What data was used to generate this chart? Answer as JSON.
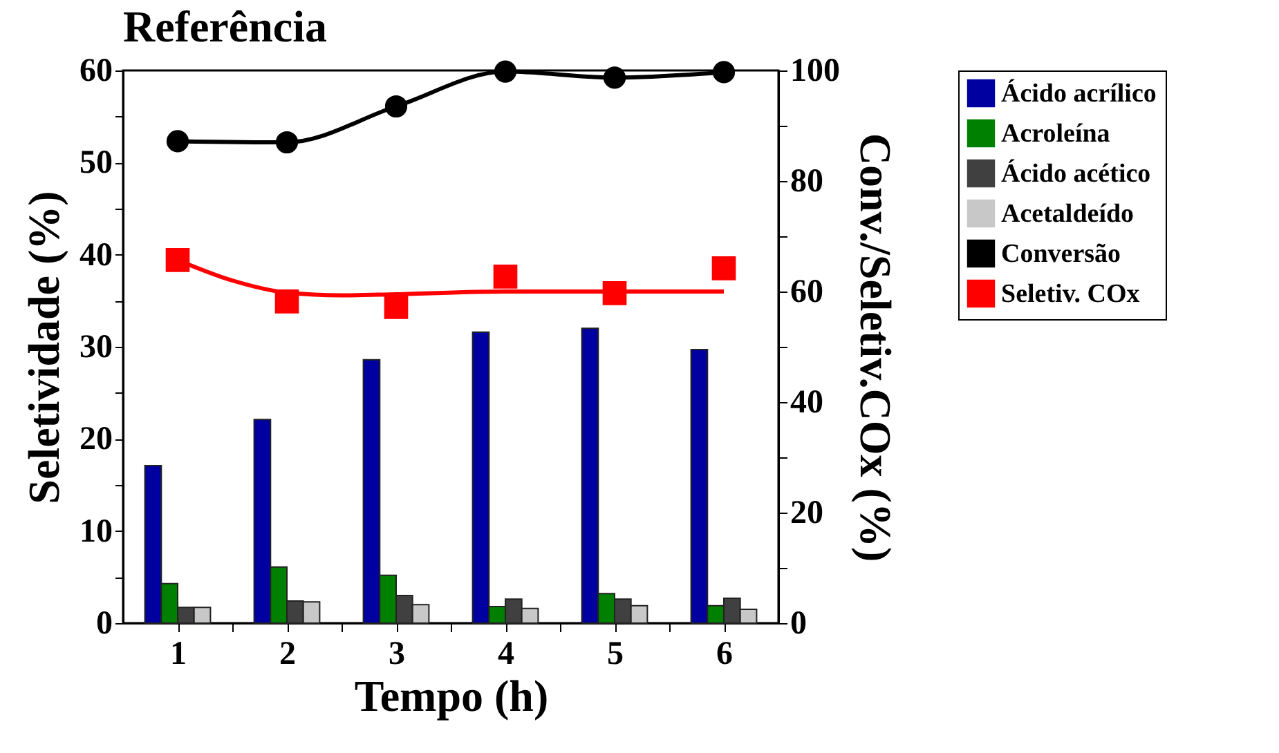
{
  "chart_data": {
    "type": "bar",
    "title": "Referência",
    "xlabel": "Tempo (h)",
    "ylabel": "Seletividade (%)",
    "y2label": "Conv./Seletiv.COx (%)",
    "x": [
      1,
      2,
      3,
      4,
      5,
      6
    ],
    "xlim": [
      0.5,
      6.5
    ],
    "xticks": [
      1,
      {
        "value": 1.5,
        "label": null
      },
      2,
      {
        "value": 2.5,
        "label": null
      },
      3,
      {
        "value": 3.5,
        "label": null
      },
      4,
      {
        "value": 4.5,
        "label": null
      },
      5,
      {
        "value": 5.5,
        "label": null
      },
      6
    ],
    "ylim": [
      0,
      60
    ],
    "yticks": [
      0,
      {
        "value": 5,
        "label": null
      },
      10,
      {
        "value": 15,
        "label": null
      },
      20,
      {
        "value": 25,
        "label": null
      },
      30,
      {
        "value": 35,
        "label": null
      },
      40,
      {
        "value": 45,
        "label": null
      },
      50,
      {
        "value": 55,
        "label": null
      },
      60
    ],
    "y2lim": [
      0,
      100
    ],
    "y2ticks": [
      0,
      {
        "value": 10,
        "label": null
      },
      20,
      {
        "value": 30,
        "label": null
      },
      40,
      {
        "value": 50,
        "label": null
      },
      60,
      {
        "value": 70,
        "label": null
      },
      80,
      {
        "value": 90,
        "label": null
      },
      100
    ],
    "legend": "right",
    "series": [
      {
        "name": "Ácido acrílico",
        "color": "#0000a0",
        "values": [
          17.1,
          22.1,
          28.6,
          31.6,
          32.0,
          29.7
        ]
      },
      {
        "name": "Acroleína",
        "color": "#008000",
        "values": [
          4.3,
          6.1,
          5.2,
          1.8,
          3.2,
          1.9
        ]
      },
      {
        "name": "Ácido acético",
        "color": "#404040",
        "values": [
          1.7,
          2.4,
          3.0,
          2.6,
          2.6,
          2.7
        ]
      },
      {
        "name": "Acetaldeído",
        "color": "#c8c8c8",
        "values": [
          1.7,
          2.3,
          2.0,
          1.6,
          1.9,
          1.5
        ]
      },
      {
        "name": "Conversão",
        "type": "line",
        "axis": "y2",
        "marker": "circle",
        "color": "#000000",
        "values": [
          87.2,
          87.0,
          93.5,
          99.8,
          98.7,
          99.7
        ]
      },
      {
        "name": "Seletiv. COx",
        "type": "scatter",
        "axis": "y2",
        "marker": "square",
        "color": "#ff0000",
        "values": [
          65.7,
          58.2,
          57.2,
          62.7,
          59.7,
          64.2
        ]
      },
      {
        "type": "line",
        "axis": "y2",
        "color": "#ff0000",
        "x": [
          1,
          1.5,
          2,
          2.5,
          3,
          4,
          5,
          6
        ],
        "values": [
          65.7,
          62.0,
          59.8,
          59.3,
          59.5,
          60.0,
          60.0,
          60.0
        ]
      }
    ]
  }
}
